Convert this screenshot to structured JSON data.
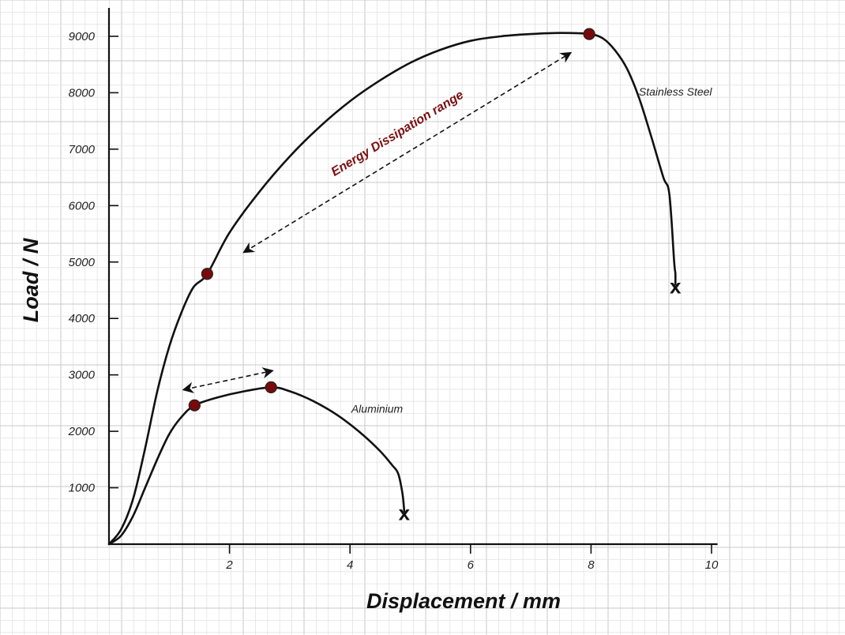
{
  "chart_data": {
    "type": "line",
    "title": "",
    "xlabel": "Displacement / mm",
    "ylabel": "Load / N",
    "xlim": [
      0,
      10
    ],
    "ylim": [
      0,
      9000
    ],
    "x_ticks": [
      2,
      4,
      6,
      8,
      10
    ],
    "y_ticks": [
      1000,
      2000,
      3000,
      4000,
      5000,
      6000,
      7000,
      8000,
      9000
    ],
    "grid": true,
    "colors": {
      "line": "#111111",
      "marker_fill": "#7a0a0a",
      "annotation_text": "#7a1010",
      "grid_major": "#c9c9c9",
      "grid_minor": "#e3e3e3"
    },
    "series": [
      {
        "name": "Stainless Steel",
        "x": [
          0,
          0.2,
          0.4,
          0.6,
          0.8,
          1.0,
          1.2,
          1.4,
          1.63,
          2.0,
          2.5,
          3.0,
          3.5,
          4.0,
          4.5,
          5.0,
          5.5,
          6.0,
          6.5,
          7.0,
          7.5,
          7.97,
          8.2,
          8.4,
          8.6,
          8.8,
          9.0,
          9.2,
          9.3,
          9.38,
          9.4,
          9.4
        ],
        "y": [
          0,
          260,
          800,
          1700,
          2700,
          3500,
          4100,
          4550,
          4790,
          5520,
          6250,
          6870,
          7400,
          7850,
          8220,
          8530,
          8760,
          8920,
          9000,
          9040,
          9060,
          9040,
          8960,
          8750,
          8420,
          7900,
          7220,
          6500,
          6200,
          5000,
          4800,
          4600
        ],
        "key_points": [
          {
            "x": 1.63,
            "y": 4790
          },
          {
            "x": 7.97,
            "y": 9040
          }
        ],
        "fracture": {
          "x": 9.4,
          "y": 4600
        },
        "label": "Stainless Steel"
      },
      {
        "name": "Aluminium",
        "x": [
          0,
          0.2,
          0.4,
          0.6,
          0.8,
          1.0,
          1.2,
          1.42,
          1.8,
          2.2,
          2.69,
          3.0,
          3.4,
          3.8,
          4.2,
          4.5,
          4.7,
          4.8,
          4.87,
          4.9
        ],
        "y": [
          0,
          150,
          500,
          1000,
          1500,
          1950,
          2250,
          2460,
          2600,
          2700,
          2780,
          2710,
          2530,
          2280,
          1950,
          1650,
          1400,
          1250,
          900,
          580
        ],
        "key_points": [
          {
            "x": 1.42,
            "y": 2460
          },
          {
            "x": 2.69,
            "y": 2780
          }
        ],
        "fracture": {
          "x": 4.9,
          "y": 580
        },
        "label": "Aluminium"
      }
    ],
    "annotations": [
      {
        "text": "Energy Dissipation range",
        "arrow_from": {
          "x": 2.25,
          "y": 5180
        },
        "arrow_to": {
          "x": 7.65,
          "y": 8700
        },
        "bidirectional": true,
        "dashed": true
      },
      {
        "text": "",
        "arrow_from": {
          "x": 1.25,
          "y": 2740
        },
        "arrow_to": {
          "x": 2.7,
          "y": 3070
        },
        "bidirectional": true,
        "dashed": true
      }
    ],
    "fracture_marker_text": "x"
  }
}
